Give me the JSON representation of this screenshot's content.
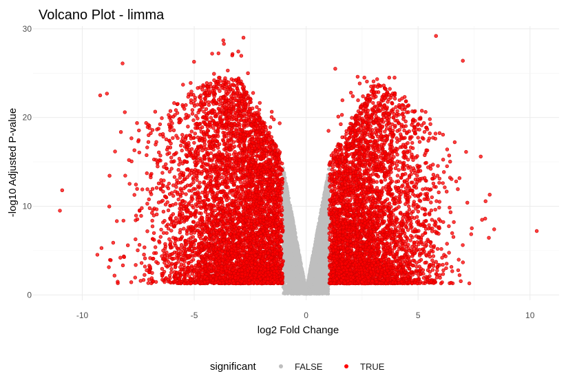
{
  "chart_data": {
    "type": "scatter",
    "title": "Volcano Plot - limma",
    "xlabel": "log2 Fold Change",
    "ylabel": "-log10 Adjusted P-value",
    "xlim": [
      -12.2,
      11.3
    ],
    "ylim": [
      -0.6,
      30.3
    ],
    "x_ticks": [
      -10,
      -5,
      0,
      5,
      10
    ],
    "y_ticks": [
      0,
      10,
      20,
      30
    ],
    "x_tick_labels": [
      "-10",
      "-5",
      "0",
      "5",
      "10"
    ],
    "y_tick_labels": [
      "0",
      "10",
      "20",
      "30"
    ],
    "grid": true,
    "legend": {
      "title": "significant",
      "position": "bottom",
      "entries": [
        {
          "label": "FALSE",
          "color": "#bebebe"
        },
        {
          "label": "TRUE",
          "color": "#ff0000"
        }
      ]
    },
    "series": [
      {
        "name": "FALSE",
        "color": "#bebebe",
        "description_points": "dense V-shaped cloud of non-significant genes: |log2FC| < 1 or adjusted p > 0.05",
        "x": [
          -0.9,
          -0.7,
          -0.5,
          -0.3,
          -0.1,
          0.1,
          0.3,
          0.5,
          0.7,
          0.9,
          -0.8,
          0.8,
          -0.6,
          0.6,
          -0.4,
          0.4,
          -0.2,
          0.2
        ],
        "y": [
          13.2,
          11.5,
          8.5,
          5.0,
          1.5,
          1.8,
          5.4,
          9.0,
          12.0,
          13.4,
          10.5,
          10.8,
          7.5,
          7.8,
          3.6,
          4.0,
          1.2,
          1.5
        ]
      },
      {
        "name": "TRUE",
        "color": "#ff0000",
        "x": [
          -11.0,
          -10.9,
          -9.2,
          -8.9,
          -8.2,
          -8.1,
          -8.3,
          -7.5,
          -7.0,
          -6.5,
          -6.0,
          -5.5,
          -5.2,
          -4.5,
          -4.2,
          -3.7,
          -3.5,
          -3.3,
          -3.0,
          -2.8,
          -2.6,
          -2.3,
          -2.0,
          -1.8,
          -1.5,
          -1.2,
          1.0,
          1.3,
          1.6,
          2.0,
          2.3,
          2.6,
          2.9,
          3.1,
          3.4,
          3.8,
          4.0,
          4.5,
          5.2,
          5.8,
          6.3,
          6.7,
          7.0,
          7.2,
          7.8,
          8.0,
          8.2,
          8.4,
          10.3
        ],
        "y": [
          9.5,
          11.8,
          22.5,
          22.7,
          26.1,
          20.6,
          4.2,
          17.3,
          18.8,
          12.0,
          11.5,
          23.7,
          18.0,
          21.8,
          27.2,
          28.7,
          25.3,
          27.0,
          21.0,
          29.0,
          25.0,
          20.5,
          17.0,
          15.0,
          12.0,
          10.0,
          18.5,
          25.5,
          20.3,
          22.8,
          24.6,
          24.5,
          23.5,
          20.5,
          16.0,
          22.5,
          11.0,
          9.0,
          8.0,
          29.2,
          16.4,
          12.8,
          26.4,
          10.4,
          15.6,
          8.6,
          11.3,
          7.4,
          7.2
        ]
      }
    ]
  }
}
